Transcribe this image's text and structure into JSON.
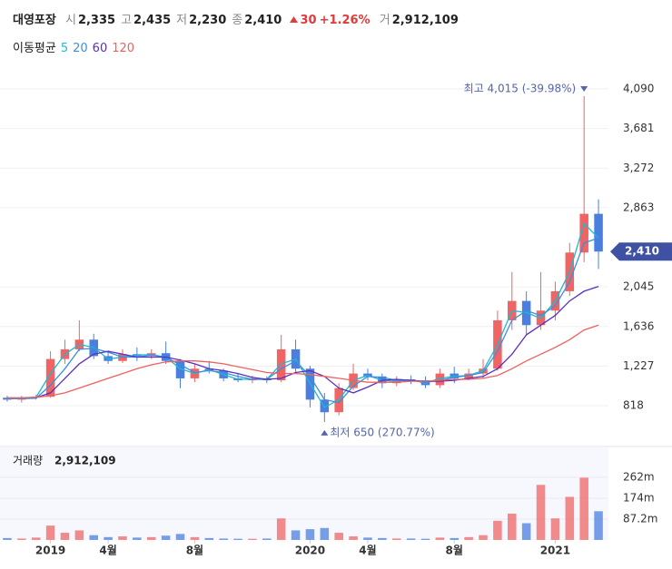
{
  "header": {
    "name": "대영포장",
    "items": [
      {
        "label": "시",
        "value": "2,335"
      },
      {
        "label": "고",
        "value": "2,435"
      },
      {
        "label": "저",
        "value": "2,230"
      },
      {
        "label": "종",
        "value": "2,410"
      }
    ],
    "change": "30",
    "change_pct": "+1.26%",
    "volume_label": "거",
    "volume": "2,912,109",
    "ma_title": "이동평균"
  },
  "chart_data": [
    {
      "type": "candlestick",
      "categories": [
        null,
        null,
        null,
        "2019",
        null,
        null,
        null,
        "4월",
        null,
        null,
        null,
        null,
        null,
        "8월",
        null,
        null,
        null,
        null,
        null,
        null,
        null,
        "2020",
        null,
        null,
        null,
        "4월",
        null,
        null,
        null,
        null,
        null,
        "8월",
        null,
        null,
        null,
        null,
        null,
        null,
        "2021",
        null,
        null,
        null
      ],
      "open": [
        900,
        880,
        900,
        910,
        1300,
        1400,
        1500,
        1330,
        1280,
        1350,
        1330,
        1360,
        1280,
        1100,
        1200,
        1180,
        1100,
        1080,
        1100,
        1080,
        1400,
        1200,
        880,
        750,
        1000,
        1150,
        1120,
        1050,
        1090,
        1080,
        1030,
        1150,
        1100,
        1150,
        1200,
        1700,
        1900,
        1650,
        1800,
        2000,
        2400,
        2800
      ],
      "high": [
        920,
        920,
        930,
        1380,
        1500,
        1700,
        1560,
        1380,
        1400,
        1420,
        1400,
        1480,
        1300,
        1250,
        1280,
        1200,
        1150,
        1130,
        1120,
        1550,
        1500,
        1230,
        950,
        1050,
        1250,
        1200,
        1150,
        1120,
        1130,
        1120,
        1200,
        1220,
        1200,
        1300,
        1800,
        2200,
        2000,
        2200,
        2100,
        2500,
        4015,
        2950
      ],
      "low": [
        860,
        850,
        880,
        900,
        1250,
        1380,
        1300,
        1250,
        1260,
        1280,
        1300,
        1250,
        1000,
        1060,
        1150,
        1070,
        1060,
        1050,
        1050,
        1060,
        1150,
        800,
        650,
        720,
        980,
        1080,
        1000,
        1020,
        1040,
        1000,
        1000,
        1050,
        1080,
        1100,
        1180,
        1600,
        1550,
        1600,
        1700,
        1950,
        2300,
        2230
      ],
      "close": [
        880,
        900,
        910,
        1300,
        1400,
        1500,
        1330,
        1280,
        1350,
        1330,
        1360,
        1280,
        1100,
        1200,
        1180,
        1100,
        1080,
        1100,
        1080,
        1400,
        1200,
        880,
        750,
        1000,
        1150,
        1120,
        1050,
        1090,
        1080,
        1030,
        1150,
        1100,
        1150,
        1200,
        1700,
        1900,
        1650,
        1800,
        2000,
        2400,
        2800,
        2410
      ],
      "up_color": "#f06464",
      "down_color": "#4a7fe0",
      "series": [
        {
          "name": "5",
          "color": "#1fb8cf",
          "values": [
            890,
            890,
            905,
            1150,
            1350,
            1450,
            1420,
            1300,
            1320,
            1340,
            1345,
            1320,
            1200,
            1150,
            1190,
            1140,
            1090,
            1090,
            1090,
            1250,
            1300,
            1050,
            800,
            880,
            1080,
            1130,
            1080,
            1070,
            1085,
            1050,
            1100,
            1120,
            1130,
            1180,
            1450,
            1800,
            1780,
            1720,
            1900,
            2200,
            2700,
            2550
          ]
        },
        {
          "name": "20",
          "color": "#3a8fe0",
          "values": [
            890,
            890,
            895,
            1030,
            1200,
            1400,
            1410,
            1370,
            1320,
            1320,
            1340,
            1320,
            1240,
            1160,
            1180,
            1160,
            1120,
            1090,
            1090,
            1200,
            1280,
            1120,
            880,
            850,
            1020,
            1120,
            1110,
            1080,
            1080,
            1060,
            1080,
            1110,
            1130,
            1160,
            1380,
            1700,
            1800,
            1750,
            1850,
            2100,
            2500,
            2550
          ]
        },
        {
          "name": "60",
          "color": "#5a2fc2",
          "values": [
            null,
            null,
            900,
            950,
            1100,
            1250,
            1350,
            1380,
            1350,
            1320,
            1320,
            1320,
            1290,
            1250,
            1200,
            1180,
            1150,
            1110,
            1090,
            1100,
            1160,
            1180,
            1120,
            1000,
            950,
            1010,
            1080,
            1090,
            1080,
            1070,
            1070,
            1080,
            1100,
            1120,
            1200,
            1350,
            1550,
            1650,
            1750,
            1900,
            2000,
            2050
          ]
        },
        {
          "name": "120",
          "color": "#f06060",
          "values": [
            900,
            900,
            905,
            920,
            950,
            1000,
            1050,
            1100,
            1150,
            1200,
            1240,
            1270,
            1280,
            1280,
            1270,
            1250,
            1220,
            1190,
            1160,
            1150,
            1150,
            1140,
            1120,
            1100,
            1080,
            1060,
            1060,
            1060,
            1070,
            1070,
            1080,
            1090,
            1090,
            1100,
            1130,
            1200,
            1280,
            1350,
            1420,
            1500,
            1600,
            1650
          ]
        }
      ],
      "ylim": [
        460,
        4210
      ],
      "yticks": [
        {
          "value": 818,
          "label": "818"
        },
        {
          "value": 1227,
          "label": "1,227"
        },
        {
          "value": 1636,
          "label": "1,636"
        },
        {
          "value": 2045,
          "label": "2,045"
        },
        {
          "value": 2863,
          "label": "2,863"
        },
        {
          "value": 3272,
          "label": "3,272"
        },
        {
          "value": 3681,
          "label": "3,681"
        },
        {
          "value": 4090,
          "label": "4,090"
        }
      ],
      "grid": true,
      "current_price": {
        "value": 2410,
        "label": "2,410"
      },
      "annotations": {
        "max": "최고 4,015 (-39.98%)",
        "min": "최저 650 (270.77%)"
      }
    },
    {
      "type": "bar",
      "title": "거래량",
      "last_value_label": "2,912,109",
      "values": [
        8,
        6,
        10,
        60,
        30,
        40,
        20,
        12,
        15,
        10,
        12,
        18,
        25,
        12,
        8,
        6,
        5,
        5,
        6,
        90,
        40,
        45,
        50,
        30,
        15,
        10,
        8,
        6,
        6,
        5,
        10,
        8,
        12,
        20,
        80,
        110,
        70,
        230,
        90,
        180,
        260,
        120
      ],
      "ylim": [
        0,
        360
      ],
      "yticks": [
        {
          "value": 87.2,
          "label": "87.2m"
        },
        {
          "value": 174,
          "label": "174m"
        },
        {
          "value": 262,
          "label": "262m"
        }
      ]
    }
  ]
}
